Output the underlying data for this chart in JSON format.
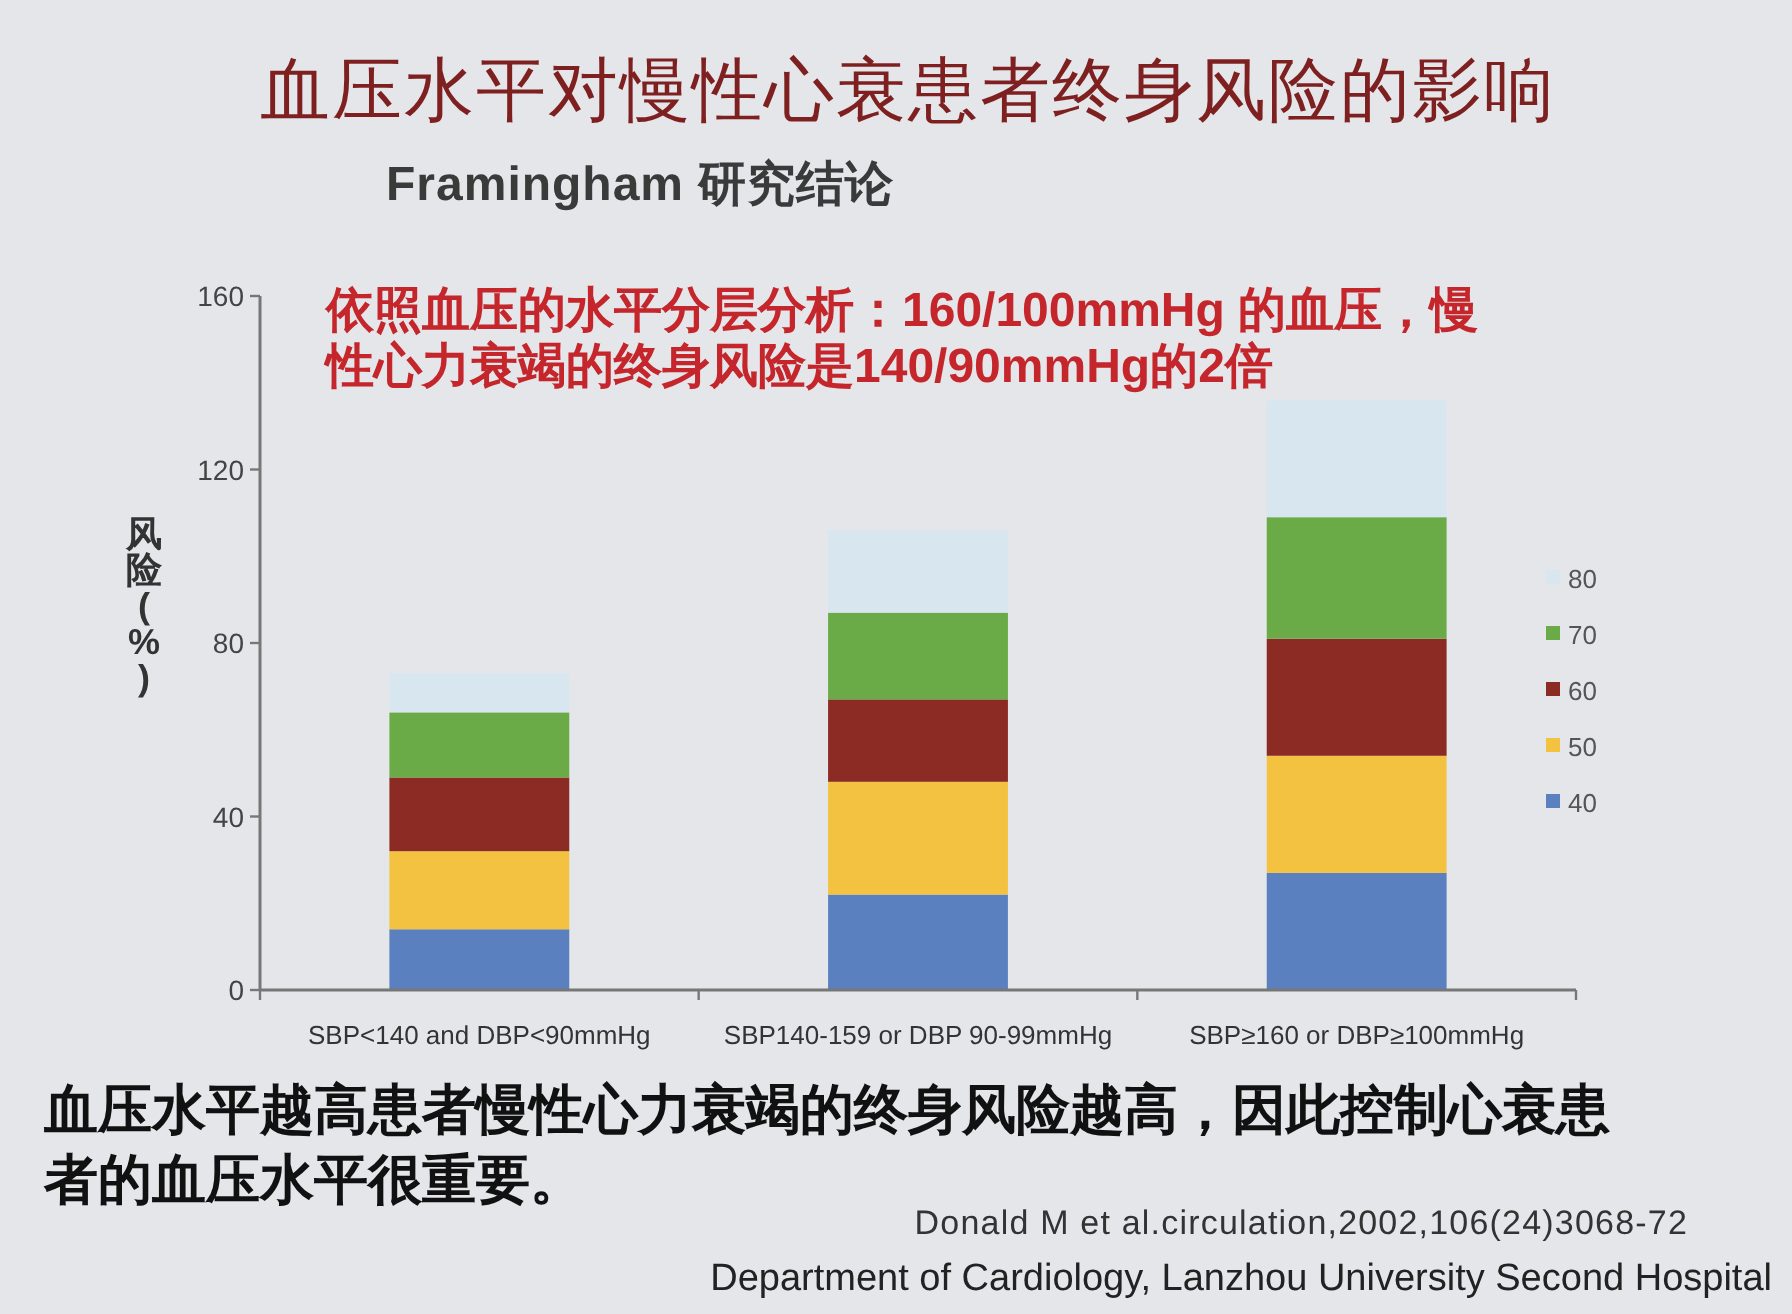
{
  "chart_data": {
    "type": "bar",
    "stacked": true,
    "title": "血压水平对慢性心衰患者终身风险的影响",
    "subtitle": "Framingham 研究结论",
    "ylabel": "风险(%)",
    "categories": [
      "SBP<140 and DBP<90mmHg",
      "SBP140-159 or DBP 90-99mmHg",
      "SBP≥160 or DBP≥100mmHg"
    ],
    "series": [
      {
        "name": "40",
        "color": "#5a80c0",
        "values": [
          14,
          22,
          27
        ]
      },
      {
        "name": "50",
        "color": "#f2c240",
        "values": [
          18,
          26,
          27
        ]
      },
      {
        "name": "60",
        "color": "#8c2b24",
        "values": [
          17,
          19,
          27
        ]
      },
      {
        "name": "70",
        "color": "#6aab47",
        "values": [
          15,
          20,
          28
        ]
      },
      {
        "name": "80",
        "color": "#d8e7ef",
        "values": [
          9,
          19,
          27
        ]
      }
    ],
    "ylim": [
      0,
      160
    ],
    "yticks": [
      0,
      40,
      80,
      120,
      160
    ],
    "legend": "right",
    "annotations": [
      "依照血压的水平分层分析：160/100mmHg 的血压，慢性心力衰竭的终身风险是140/90mmHg的2倍",
      "血压水平越高患者慢性心力衰竭的终身风险越高，因此控制心衰患者的血压水平很重要。",
      "Donald M et al.circulation,2002,106(24)3068-72",
      "Department of Cardiology, Lanzhou University Second Hospital"
    ]
  }
}
